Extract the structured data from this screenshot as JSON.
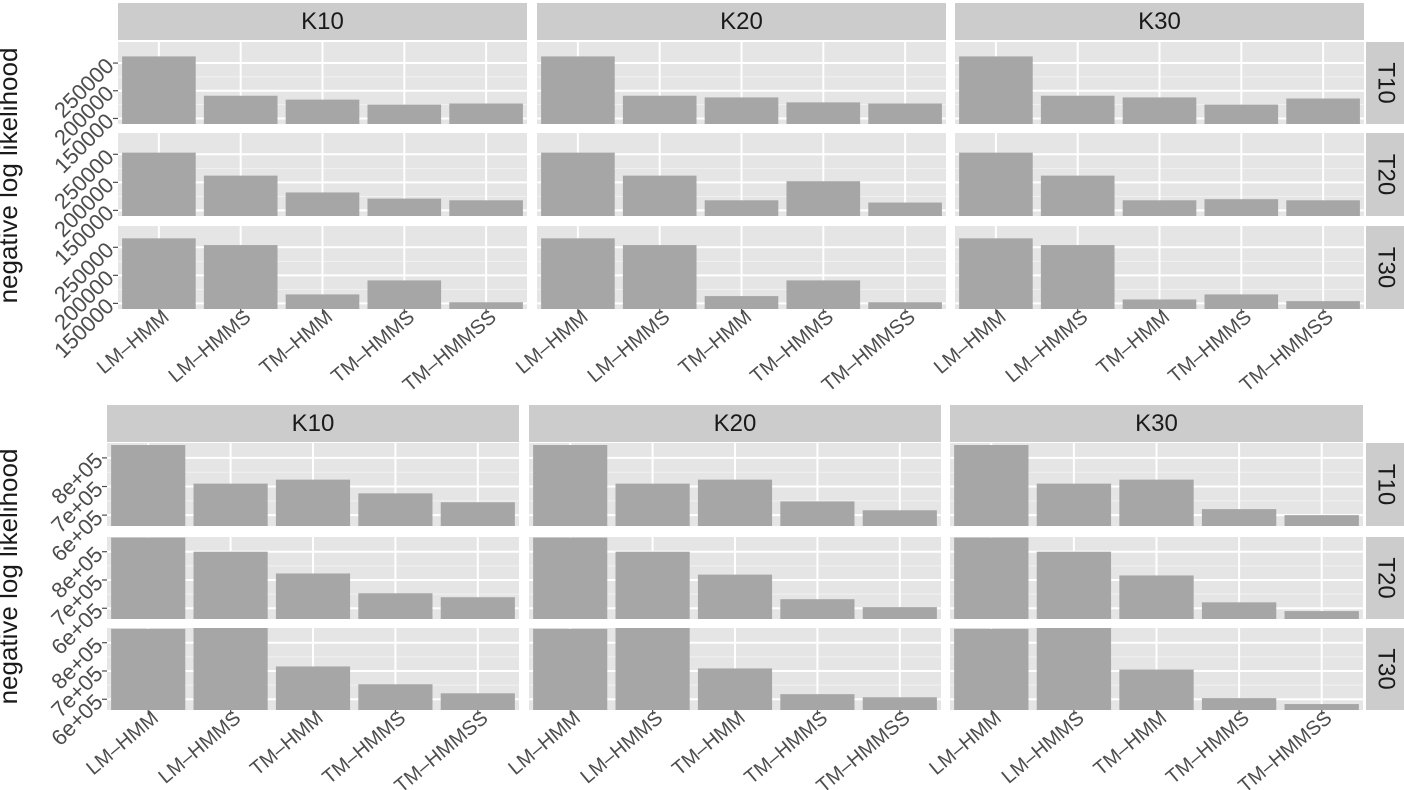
{
  "chart_data": [
    {
      "type": "bar",
      "ylabel": "negative log likelihood",
      "color": "#a6a6a6",
      "grid": true,
      "col_labels": [
        "K10",
        "K20",
        "K30"
      ],
      "row_labels": [
        "T10",
        "T20",
        "T30"
      ],
      "categories": [
        "LM–HMM",
        "LM–HMMS",
        "TM–HMM",
        "TM–HMMS",
        "TM–HMMSS"
      ],
      "ylim": [
        140000,
        288000
      ],
      "yticks": [
        150000,
        200000,
        250000
      ],
      "values": [
        [
          [
            262000,
            191000,
            184000,
            175000,
            177000
          ],
          [
            262000,
            191000,
            188000,
            179000,
            177000
          ],
          [
            262000,
            191000,
            188000,
            175000,
            186000
          ]
        ],
        [
          [
            253000,
            212000,
            182000,
            171000,
            168000
          ],
          [
            253000,
            212000,
            168000,
            202000,
            164000
          ],
          [
            253000,
            212000,
            168000,
            170000,
            168000
          ]
        ],
        [
          [
            266000,
            254000,
            166000,
            191000,
            152000
          ],
          [
            266000,
            254000,
            163000,
            191000,
            152000
          ],
          [
            266000,
            254000,
            157000,
            166000,
            154000
          ]
        ]
      ]
    },
    {
      "type": "bar",
      "ylabel": "negative log likelihood",
      "color": "#a6a6a6",
      "grid": true,
      "col_labels": [
        "K10",
        "K20",
        "K30"
      ],
      "row_labels": [
        "T10",
        "T20",
        "T30"
      ],
      "categories": [
        "LM–HMM",
        "LM–HMMS",
        "TM–HMM",
        "TM–HMMS",
        "TM–HMMSS"
      ],
      "ylim": [
        562000,
        852000
      ],
      "yticks": [
        {
          "value": 600000,
          "label": "6e+05"
        },
        {
          "value": 700000,
          "label": "7e+05"
        },
        {
          "value": 800000,
          "label": "8e+05"
        }
      ],
      "values": [
        [
          [
            845000,
            710000,
            724000,
            676000,
            645000
          ],
          [
            845000,
            710000,
            724000,
            648000,
            617000
          ],
          [
            845000,
            710000,
            724000,
            621000,
            600000
          ]
        ],
        [
          [
            850000,
            800000,
            723000,
            653000,
            639000
          ],
          [
            850000,
            800000,
            719000,
            632000,
            604000
          ],
          [
            850000,
            800000,
            716000,
            621000,
            590000
          ]
        ],
        [
          [
            849000,
            860000,
            716000,
            653000,
            621000
          ],
          [
            849000,
            860000,
            709000,
            618000,
            607000
          ],
          [
            849000,
            860000,
            705000,
            604000,
            583000
          ]
        ]
      ]
    }
  ]
}
